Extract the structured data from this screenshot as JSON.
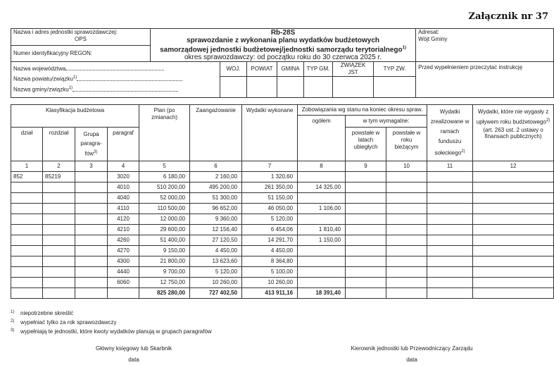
{
  "attachment": "Załącznik nr 37",
  "header": {
    "unit_name_label": "Nazwa i adres jednostki sprawozdawczej:",
    "unit_name_value": "OPS",
    "regon_label": "Numer identyfikacyjny REGON:",
    "form_code": "Rb-28S",
    "title_line1": "sprawozdanie z wykonania planu wydatków budżetowych",
    "title_line2": "samorządowej jednostki budżetowej/jednostki samorządu terytorialnego",
    "title_sup": "1)",
    "period": "okres sprawozdawczy: od początku roku do 30 czerwca 2025 r.",
    "addressee_label": "Adresat:",
    "addressee_value": "Wójt Gminy",
    "voivodeship_label": "Nazwa województwa",
    "county_label": "Nazwa powiatu/związku",
    "commune_label": "Nazwa gminy/związku",
    "label_sup": "1)",
    "codes": [
      "WOJ.",
      "POWIAT",
      "GMINA",
      "TYP GM.",
      "ZWIĄZEK JST",
      "TYP ZW."
    ],
    "instruction": "Przed wypełnieniem przeczytać instrukcję"
  },
  "table": {
    "h_classification": "Klasyfikacja budżetowa",
    "h_dzial": "dział",
    "h_rozdzial": "rozdział",
    "h_grupa": "Grupa paragra-fów",
    "h_grupa_sup": "3)",
    "h_paragraf": "paragraf",
    "h_plan": "Plan (po zmianach)",
    "h_zaang": "Zaangażowanie",
    "h_wydatki": "Wydatki wykonane",
    "h_zobow": "Zobowiązania wg stanu na koniec okresu spraw.",
    "h_ogolem": "ogółem",
    "h_wymagalne": "w tym wymagalne:",
    "h_lata": "powstałe w latach ubiegłych",
    "h_biezacy": "powstałe w roku bieżącym",
    "h_fundusz": "Wydatki zrealizowane w ramach funduszu sołeckiego",
    "h_fundusz_sup": "2)",
    "h_niewygasle": "Wydatki, które nie wygasły z upływem roku budżetowego",
    "h_niewygasle_sup": "2)",
    "h_niewygasle_note": "(art. 263 ust. 2 ustawy o finansach publicznych)",
    "col_numbers": [
      "1",
      "2",
      "3",
      "4",
      "5",
      "6",
      "7",
      "8",
      "9",
      "10",
      "11",
      "12"
    ],
    "rows": [
      [
        "852",
        "85219",
        "",
        "3020",
        "6 180,00",
        "2 160,00",
        "1 320,60",
        "",
        "",
        "",
        "",
        ""
      ],
      [
        "",
        "",
        "",
        "4010",
        "510 200,00",
        "495 200,00",
        "261 350,00",
        "14 325,00",
        "",
        "",
        "",
        ""
      ],
      [
        "",
        "",
        "",
        "4040",
        "52 000,00",
        "51 300,00",
        "51 150,00",
        "",
        "",
        "",
        "",
        ""
      ],
      [
        "",
        "",
        "",
        "4110",
        "110 500,00",
        "96 652,00",
        "46 050,00",
        "1 106,00",
        "",
        "",
        "",
        ""
      ],
      [
        "",
        "",
        "",
        "4120",
        "12 000,00",
        "9 360,00",
        "5 120,00",
        "",
        "",
        "",
        "",
        ""
      ],
      [
        "",
        "",
        "",
        "4210",
        "29 600,00",
        "12 156,40",
        "6 454,06",
        "1 810,40",
        "",
        "",
        "",
        ""
      ],
      [
        "",
        "",
        "",
        "4260",
        "51 400,00",
        "27 120,50",
        "14 291,70",
        "1 150,00",
        "",
        "",
        "",
        ""
      ],
      [
        "",
        "",
        "",
        "4270",
        "9 150,00",
        "4 450,00",
        "4 450,00",
        "",
        "",
        "",
        "",
        ""
      ],
      [
        "",
        "",
        "",
        "4300",
        "21 800,00",
        "13 623,60",
        "8 364,80",
        "",
        "",
        "",
        "",
        ""
      ],
      [
        "",
        "",
        "",
        "4440",
        "9 700,00",
        "5 120,00",
        "5 100,00",
        "",
        "",
        "",
        "",
        ""
      ],
      [
        "",
        "",
        "",
        "6060",
        "12 750,00",
        "10 260,00",
        "10 260,00",
        "",
        "",
        "",
        "",
        ""
      ]
    ],
    "total": [
      "",
      "",
      "",
      "",
      "825 280,00",
      "727 402,50",
      "413 911,16",
      "18 391,40",
      "",
      "",
      "",
      ""
    ]
  },
  "footnotes": [
    {
      "num": "1)",
      "text": "niepotrzebne skreślić"
    },
    {
      "num": "2)",
      "text": "wypełniać tylko za rok sprawozdawczy"
    },
    {
      "num": "3)",
      "text": "wypełniają te jednostki, które kwoty wydatków planują w grupach paragrafów"
    }
  ],
  "signatures": {
    "left": "Główny księgowy lub Skarbnik",
    "right": "Kierownik jednostki lub Przewodniczący Zarządu",
    "date_label": "data"
  }
}
